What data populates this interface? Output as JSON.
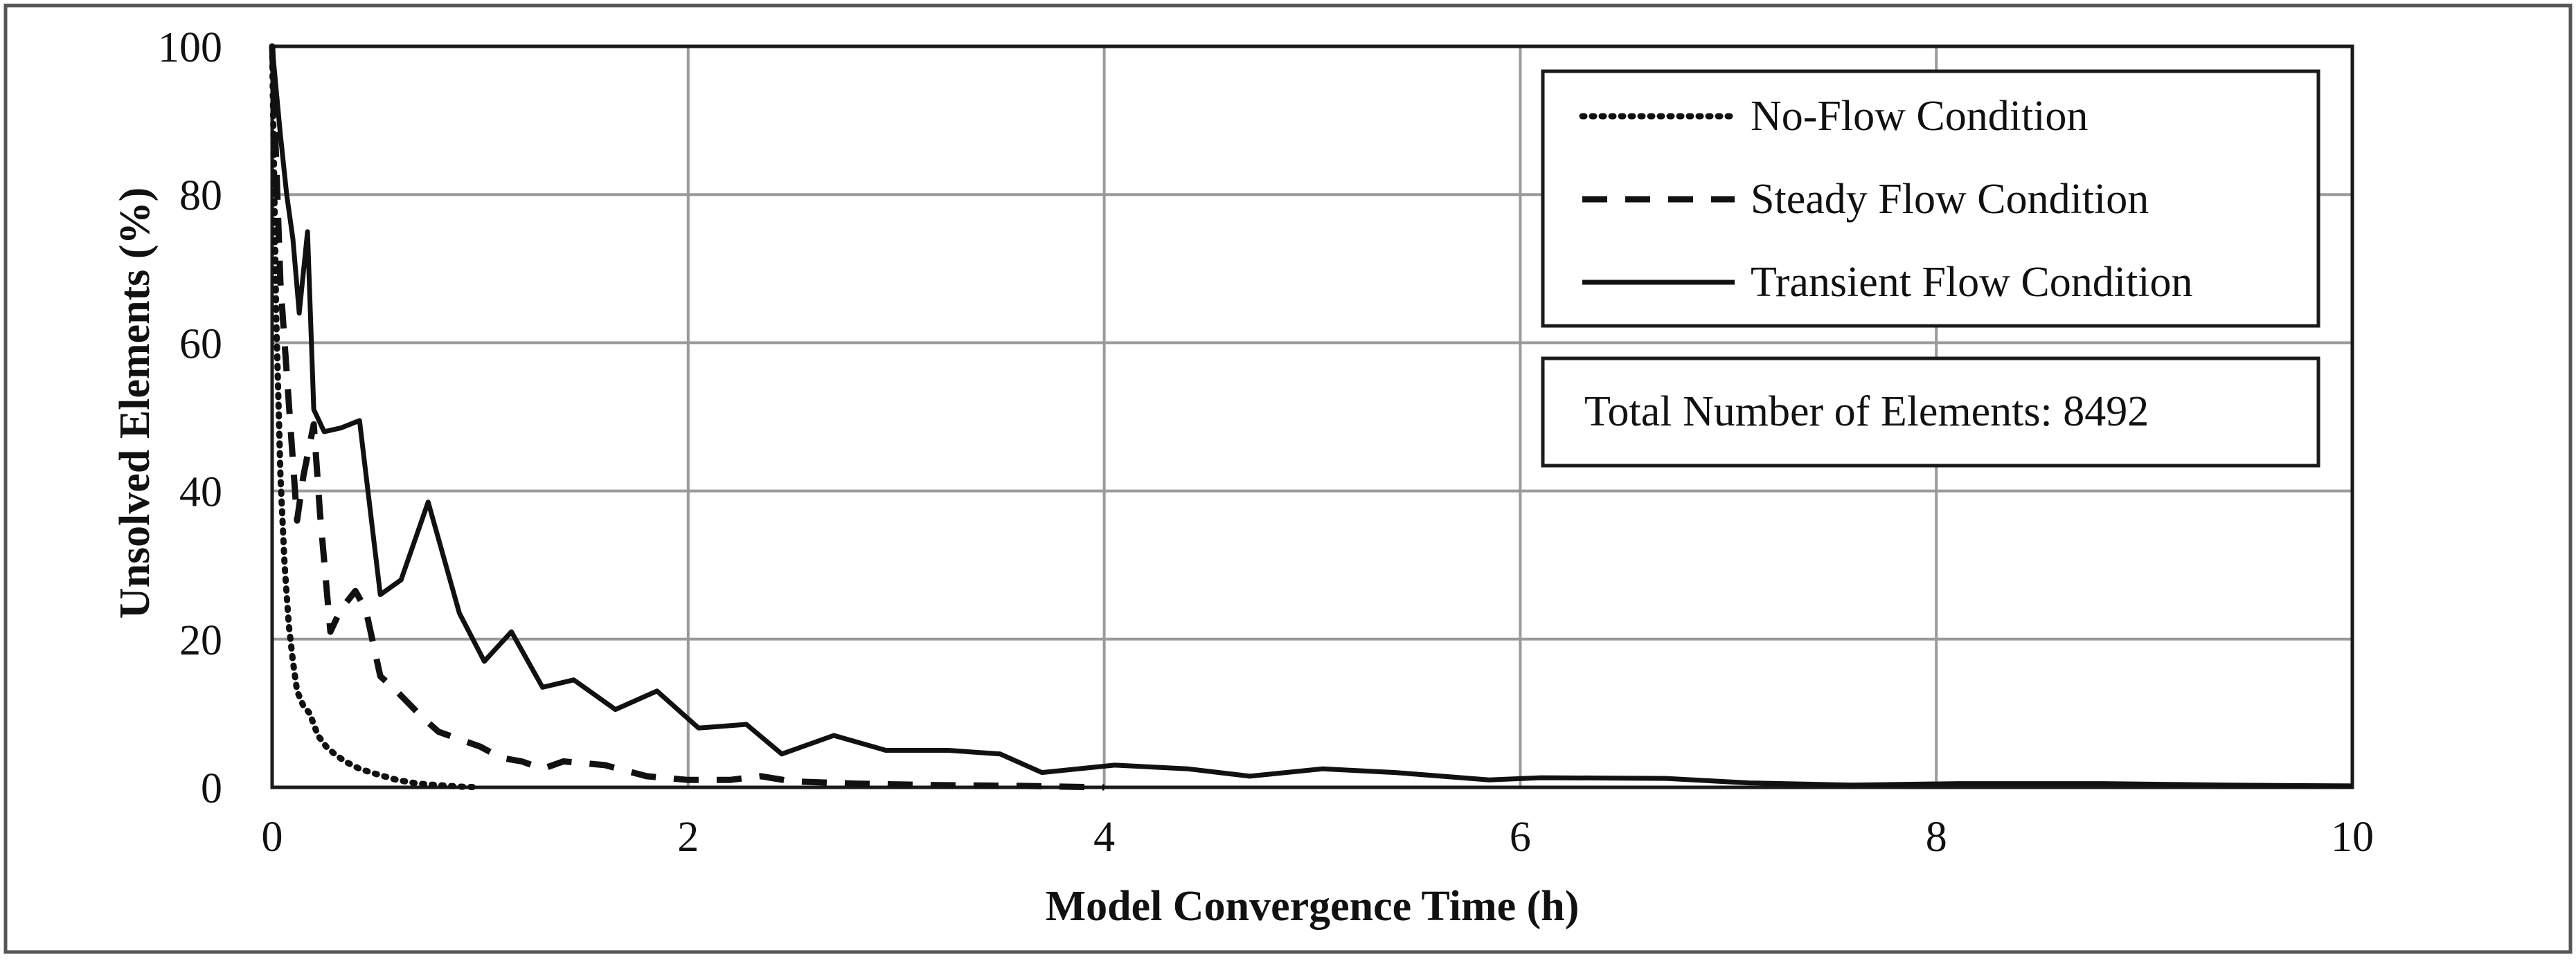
{
  "chart_data": {
    "type": "line",
    "title": "",
    "xlabel": "Model Convergence Time (h)",
    "ylabel": "Unsolved Elements (%)",
    "xlim": [
      0,
      10
    ],
    "ylim": [
      0,
      100
    ],
    "x_ticks": [
      "0",
      "2",
      "4",
      "6",
      "8",
      "10"
    ],
    "y_ticks": [
      "0",
      "20",
      "40",
      "60",
      "80",
      "100"
    ],
    "grid": true,
    "legend_position": "top-right",
    "annotation": "Total Number of Elements: 8492",
    "series": [
      {
        "name": "No-Flow Condition",
        "style": "dotted",
        "points": [
          [
            0,
            100
          ],
          [
            0.02,
            63
          ],
          [
            0.04,
            42
          ],
          [
            0.06,
            30
          ],
          [
            0.08,
            22
          ],
          [
            0.1,
            17
          ],
          [
            0.12,
            13
          ],
          [
            0.15,
            11
          ],
          [
            0.18,
            10
          ],
          [
            0.22,
            7
          ],
          [
            0.26,
            5.5
          ],
          [
            0.3,
            4.5
          ],
          [
            0.35,
            3.5
          ],
          [
            0.42,
            2.5
          ],
          [
            0.5,
            1.8
          ],
          [
            0.6,
            1.0
          ],
          [
            0.7,
            0.5
          ],
          [
            0.8,
            0.3
          ],
          [
            0.9,
            0.1
          ],
          [
            1.0,
            0
          ]
        ]
      },
      {
        "name": "Steady Flow Condition",
        "style": "dashed",
        "points": [
          [
            0,
            100
          ],
          [
            0.04,
            68
          ],
          [
            0.08,
            52
          ],
          [
            0.12,
            36
          ],
          [
            0.15,
            42
          ],
          [
            0.2,
            49
          ],
          [
            0.23,
            37
          ],
          [
            0.28,
            21
          ],
          [
            0.33,
            24
          ],
          [
            0.4,
            26.5
          ],
          [
            0.45,
            24
          ],
          [
            0.52,
            15
          ],
          [
            0.58,
            13.5
          ],
          [
            0.65,
            11.5
          ],
          [
            0.72,
            9.5
          ],
          [
            0.8,
            7.5
          ],
          [
            0.9,
            6.5
          ],
          [
            1.0,
            5.5
          ],
          [
            1.1,
            4
          ],
          [
            1.2,
            3.5
          ],
          [
            1.3,
            2.5
          ],
          [
            1.4,
            3.5
          ],
          [
            1.6,
            3
          ],
          [
            1.8,
            1.5
          ],
          [
            2.0,
            1
          ],
          [
            2.2,
            1
          ],
          [
            2.35,
            1.5
          ],
          [
            2.5,
            0.8
          ],
          [
            2.8,
            0.5
          ],
          [
            3.2,
            0.3
          ],
          [
            3.6,
            0.2
          ],
          [
            4.0,
            0
          ]
        ]
      },
      {
        "name": "Transient Flow Condition",
        "style": "solid",
        "points": [
          [
            0,
            100
          ],
          [
            0.04,
            88
          ],
          [
            0.07,
            80
          ],
          [
            0.1,
            74
          ],
          [
            0.13,
            64
          ],
          [
            0.17,
            75
          ],
          [
            0.2,
            51
          ],
          [
            0.25,
            48
          ],
          [
            0.33,
            48.5
          ],
          [
            0.42,
            49.5
          ],
          [
            0.52,
            26
          ],
          [
            0.62,
            28
          ],
          [
            0.75,
            38.5
          ],
          [
            0.9,
            23.5
          ],
          [
            1.02,
            17
          ],
          [
            1.15,
            21
          ],
          [
            1.3,
            13.5
          ],
          [
            1.45,
            14.5
          ],
          [
            1.65,
            10.5
          ],
          [
            1.85,
            13
          ],
          [
            2.05,
            8
          ],
          [
            2.28,
            8.5
          ],
          [
            2.45,
            4.5
          ],
          [
            2.7,
            7
          ],
          [
            2.95,
            5
          ],
          [
            3.25,
            5
          ],
          [
            3.5,
            4.5
          ],
          [
            3.7,
            2
          ],
          [
            4.05,
            3
          ],
          [
            4.4,
            2.5
          ],
          [
            4.7,
            1.5
          ],
          [
            5.05,
            2.5
          ],
          [
            5.4,
            2
          ],
          [
            5.85,
            1
          ],
          [
            6.1,
            1.3
          ],
          [
            6.7,
            1.2
          ],
          [
            7.1,
            0.6
          ],
          [
            7.6,
            0.3
          ],
          [
            8.1,
            0.5
          ],
          [
            8.8,
            0.5
          ],
          [
            9.4,
            0.3
          ],
          [
            10,
            0.2
          ]
        ]
      }
    ]
  }
}
